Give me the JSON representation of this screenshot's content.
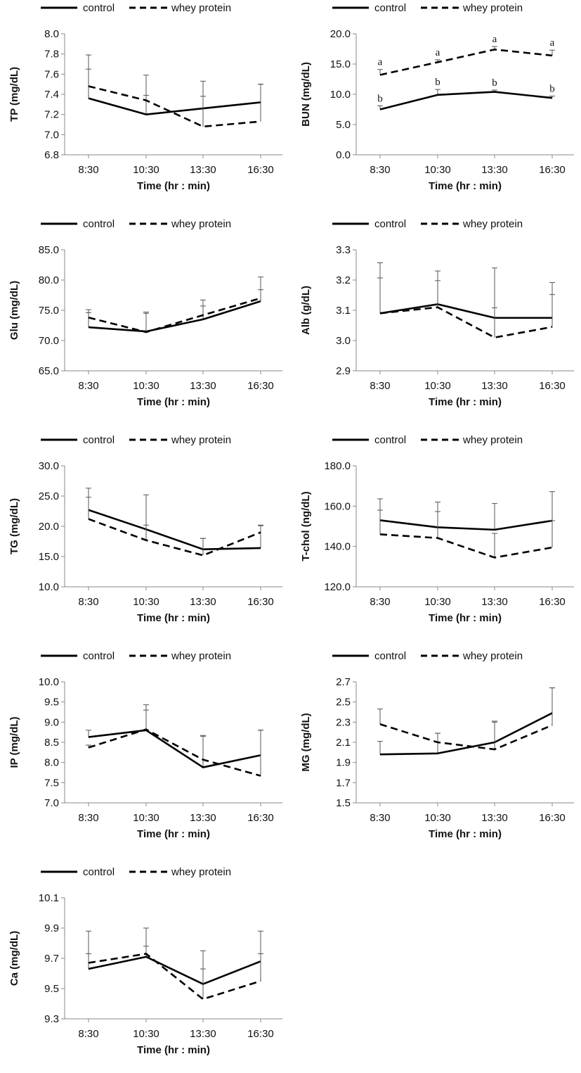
{
  "figure": {
    "legend": {
      "control": "control",
      "whey": "whey protein"
    },
    "xlabel": "Time (hr : min)",
    "categories": [
      "8:30",
      "10:30",
      "13:30",
      "16:30"
    ]
  },
  "chart_data": [
    {
      "type": "line",
      "ylabel": "TP  (mg/dL)",
      "ylim": [
        6.8,
        8.0
      ],
      "yticks": [
        "6.8",
        "7.0",
        "7.2",
        "7.4",
        "7.6",
        "7.8",
        "8.0"
      ],
      "categories": [
        "8:30",
        "10:30",
        "13:30",
        "16:30"
      ],
      "series": [
        {
          "name": "control",
          "values": [
            7.36,
            7.2,
            7.26,
            7.32
          ],
          "errors": [
            0.29,
            0.19,
            0.12,
            0.18
          ]
        },
        {
          "name": "whey protein",
          "values": [
            7.48,
            7.34,
            7.08,
            7.13
          ],
          "errors": [
            0.31,
            0.25,
            0.45,
            0.37
          ]
        }
      ]
    },
    {
      "type": "line",
      "ylabel": "BUN (mg/dL)",
      "ylim": [
        0,
        20
      ],
      "yticks": [
        "0.0",
        "5.0",
        "10.0",
        "15.0",
        "20.0"
      ],
      "categories": [
        "8:30",
        "10:30",
        "13:30",
        "16:30"
      ],
      "series": [
        {
          "name": "control",
          "values": [
            7.5,
            9.9,
            10.4,
            9.4
          ],
          "errors": [
            0.6,
            0.9,
            0.3,
            0.3
          ],
          "labels": [
            "b",
            "b",
            "b",
            "b"
          ]
        },
        {
          "name": "whey protein",
          "values": [
            13.2,
            15.3,
            17.4,
            16.4
          ],
          "errors": [
            0.9,
            0.4,
            0.5,
            0.9
          ],
          "labels": [
            "a",
            "a",
            "a",
            "a"
          ]
        }
      ]
    },
    {
      "type": "line",
      "ylabel": "Glu (mg/dL)",
      "ylim": [
        65,
        85
      ],
      "yticks": [
        "65.0",
        "70.0",
        "75.0",
        "80.0",
        "85.0"
      ],
      "categories": [
        "8:30",
        "10:30",
        "13:30",
        "16:30"
      ],
      "series": [
        {
          "name": "control",
          "values": [
            72.2,
            71.5,
            73.5,
            76.5
          ],
          "errors": [
            2.4,
            3.0,
            2.2,
            1.9
          ]
        },
        {
          "name": "whey protein",
          "values": [
            73.8,
            71.4,
            74.2,
            77.0
          ],
          "errors": [
            1.3,
            3.3,
            2.5,
            3.5
          ]
        }
      ]
    },
    {
      "type": "line",
      "ylabel": "Alb (g/dL)",
      "ylim": [
        2.9,
        3.3
      ],
      "yticks": [
        "2.9",
        "3.0",
        "3.1",
        "3.2",
        "3.3"
      ],
      "categories": [
        "8:30",
        "10:30",
        "13:30",
        "16:30"
      ],
      "series": [
        {
          "name": "control",
          "values": [
            3.09,
            3.12,
            3.075,
            3.075
          ],
          "errors": [
            0.117,
            0.078,
            0.033,
            0.077
          ]
        },
        {
          "name": "whey protein",
          "values": [
            3.09,
            3.11,
            3.01,
            3.045
          ],
          "errors": [
            0.167,
            0.12,
            0.23,
            0.147
          ]
        }
      ]
    },
    {
      "type": "line",
      "ylabel": "TG (mg/dL)",
      "ylim": [
        10,
        30
      ],
      "yticks": [
        "10.0",
        "15.0",
        "20.0",
        "25.0",
        "30.0"
      ],
      "categories": [
        "8:30",
        "10:30",
        "13:30",
        "16:30"
      ],
      "series": [
        {
          "name": "control",
          "values": [
            22.7,
            19.5,
            16.2,
            16.4
          ],
          "errors": [
            2.1,
            0.7,
            1.8,
            3.7
          ]
        },
        {
          "name": "whey protein",
          "values": [
            21.2,
            17.7,
            15.2,
            19.0
          ],
          "errors": [
            5.1,
            7.5,
            2.8,
            1.2
          ]
        }
      ]
    },
    {
      "type": "line",
      "ylabel": "T-chol (ng/dL)",
      "ylim": [
        120,
        180
      ],
      "yticks": [
        "120.0",
        "140.0",
        "160.0",
        "180.0"
      ],
      "categories": [
        "8:30",
        "10:30",
        "13:30",
        "16:30"
      ],
      "series": [
        {
          "name": "control",
          "values": [
            153,
            149.5,
            148.3,
            152.8
          ],
          "errors": [
            10.6,
            12.5,
            13.0,
            14.4
          ]
        },
        {
          "name": "whey protein",
          "values": [
            146,
            144.2,
            134.5,
            139.5
          ],
          "errors": [
            12.0,
            13.1,
            12.0,
            13.3
          ]
        }
      ]
    },
    {
      "type": "line",
      "ylabel": "IP (mg/dL)",
      "ylim": [
        7.0,
        10.0
      ],
      "yticks": [
        "7.0",
        "7.5",
        "8.0",
        "8.5",
        "9.0",
        "9.5",
        "10.0"
      ],
      "categories": [
        "8:30",
        "10:30",
        "13:30",
        "16:30"
      ],
      "series": [
        {
          "name": "control",
          "values": [
            8.63,
            8.8,
            7.88,
            8.18
          ],
          "errors": [
            0.17,
            0.63,
            0.77,
            0.62
          ]
        },
        {
          "name": "whey protein",
          "values": [
            8.37,
            8.82,
            8.07,
            7.67
          ],
          "errors": [
            0.06,
            0.48,
            0.6,
            1.13
          ]
        }
      ]
    },
    {
      "type": "line",
      "ylabel": "MG (mg/dL)",
      "ylim": [
        1.5,
        2.7
      ],
      "yticks": [
        "1.5",
        "1.7",
        "1.9",
        "2.1",
        "2.3",
        "2.5",
        "2.7"
      ],
      "categories": [
        "8:30",
        "10:30",
        "13:30",
        "16:30"
      ],
      "series": [
        {
          "name": "control",
          "values": [
            1.98,
            1.99,
            2.1,
            2.39
          ],
          "errors": [
            0.13,
            0.2,
            0.21,
            0.25
          ]
        },
        {
          "name": "whey protein",
          "values": [
            2.28,
            2.1,
            2.03,
            2.27
          ],
          "errors": [
            0.15,
            0.09,
            0.27,
            0.37
          ]
        }
      ]
    },
    {
      "type": "line",
      "ylabel": "Ca (mg/dL)",
      "ylim": [
        9.3,
        10.1
      ],
      "yticks": [
        "9.3",
        "9.5",
        "9.7",
        "9.9",
        "10.1"
      ],
      "categories": [
        "8:30",
        "10:30",
        "13:30",
        "16:30"
      ],
      "series": [
        {
          "name": "control",
          "values": [
            9.63,
            9.71,
            9.53,
            9.68
          ],
          "errors": [
            0.25,
            0.19,
            0.22,
            0.2
          ]
        },
        {
          "name": "whey protein",
          "values": [
            9.67,
            9.73,
            9.43,
            9.55
          ],
          "errors": [
            0.06,
            0.05,
            0.2,
            0.18
          ]
        }
      ]
    }
  ]
}
